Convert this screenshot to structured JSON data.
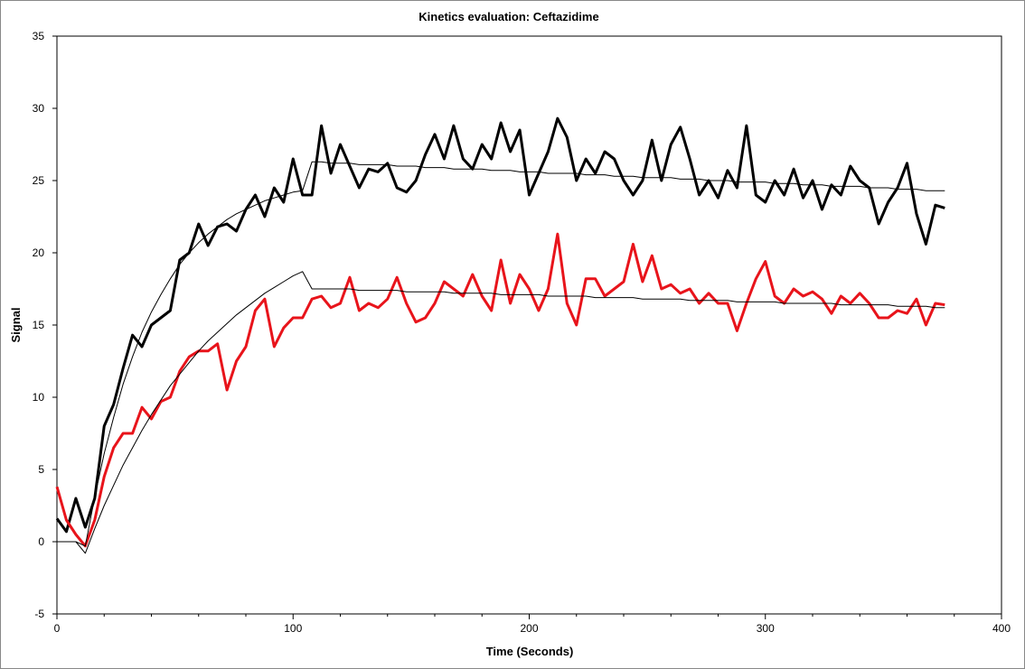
{
  "chart_data": {
    "type": "line",
    "title": "Kinetics evaluation: Ceftazidime",
    "x_label": "Time (Seconds)",
    "y_label": "Signal",
    "xlim": [
      0,
      400
    ],
    "xticks": [
      0,
      100,
      200,
      300,
      400
    ],
    "xminorticks": [
      20,
      40,
      60,
      80,
      120,
      140,
      160,
      180,
      220,
      240,
      260,
      280,
      320,
      340,
      360,
      380
    ],
    "ylim": [
      -5,
      35
    ],
    "yticks": [
      -5,
      0,
      5,
      10,
      15,
      20,
      25,
      30,
      35
    ],
    "grid": false,
    "x": [
      0,
      4,
      8,
      12,
      16,
      20,
      24,
      28,
      32,
      36,
      40,
      44,
      48,
      52,
      56,
      60,
      64,
      68,
      72,
      76,
      80,
      84,
      88,
      92,
      96,
      100,
      104,
      108,
      112,
      116,
      120,
      124,
      128,
      132,
      136,
      140,
      144,
      148,
      152,
      156,
      160,
      164,
      168,
      172,
      176,
      180,
      184,
      188,
      192,
      196,
      200,
      204,
      208,
      212,
      216,
      220,
      224,
      228,
      232,
      236,
      240,
      244,
      248,
      252,
      256,
      260,
      264,
      268,
      272,
      276,
      280,
      284,
      288,
      292,
      296,
      300,
      304,
      308,
      312,
      316,
      320,
      324,
      328,
      332,
      336,
      340,
      344,
      348,
      352,
      356,
      360,
      364,
      368,
      372,
      376
    ],
    "series": [
      {
        "color": "#000000",
        "line_width": 3,
        "values": [
          1.6,
          0.7,
          3.0,
          1.0,
          3.0,
          8.0,
          9.5,
          12.0,
          14.3,
          13.5,
          15,
          15.5,
          16,
          19.5,
          20,
          22,
          20.5,
          21.8,
          22,
          21.5,
          23,
          24,
          22.5,
          24.5,
          23.5,
          26.5,
          24,
          24,
          28.8,
          25.5,
          27.5,
          26,
          24.5,
          25.8,
          25.6,
          26.2,
          24.5,
          24.2,
          25,
          26.8,
          28.2,
          26.5,
          28.8,
          26.5,
          25.8,
          27.5,
          26.5,
          29,
          27,
          28.5,
          24,
          25.5,
          27,
          29.3,
          28,
          25,
          26.5,
          25.5,
          27,
          26.5,
          25,
          24,
          25,
          27.8,
          25,
          27.5,
          28.7,
          26.5,
          24,
          25,
          23.8,
          25.7,
          24.5,
          28.8,
          24,
          23.5,
          25,
          24,
          25.8,
          23.8,
          25,
          23,
          24.7,
          24,
          26,
          25,
          24.5,
          22,
          23.5,
          24.5,
          26.2,
          22.7,
          20.6,
          23.3,
          23.1
        ]
      },
      {
        "color": "#e8141b",
        "line_width": 3,
        "values": [
          3.8,
          1.5,
          0.5,
          -0.3,
          1.5,
          4.5,
          6.5,
          7.5,
          7.5,
          9.3,
          8.5,
          9.7,
          10,
          11.8,
          12.8,
          13.2,
          13.2,
          13.7,
          10.5,
          12.5,
          13.5,
          16,
          16.8,
          13.5,
          14.8,
          15.5,
          15.5,
          16.8,
          17,
          16.2,
          16.5,
          18.3,
          16,
          16.5,
          16.2,
          16.8,
          18.3,
          16.5,
          15.2,
          15.5,
          16.5,
          18,
          17.5,
          17,
          18.5,
          17,
          16,
          19.5,
          16.5,
          18.5,
          17.5,
          16,
          17.5,
          21.3,
          16.5,
          15,
          18.2,
          18.2,
          17,
          17.5,
          18,
          20.6,
          18,
          19.8,
          17.5,
          17.8,
          17.2,
          17.5,
          16.5,
          17.2,
          16.5,
          16.5,
          14.6,
          16.5,
          18.2,
          19.4,
          17,
          16.5,
          17.5,
          17,
          17.3,
          16.8,
          15.8,
          17,
          16.5,
          17.2,
          16.5,
          15.5,
          15.5,
          16,
          15.8,
          16.8,
          15,
          16.5,
          16.4
        ]
      },
      {
        "color": "#000000",
        "line_width": 1,
        "values": [
          0,
          0,
          0,
          -0.3,
          3.1,
          6.1,
          8.6,
          10.9,
          12.8,
          14.5,
          15.9,
          17.1,
          18.2,
          19.2,
          20.0,
          20.7,
          21.3,
          21.8,
          22.3,
          22.7,
          23.0,
          23.3,
          23.6,
          23.8,
          24.0,
          24.2,
          24.3,
          26.3,
          26.3,
          26.2,
          26.2,
          26.2,
          26.1,
          26.1,
          26.1,
          26.1,
          26.0,
          26.0,
          26.0,
          25.9,
          25.9,
          25.9,
          25.8,
          25.8,
          25.8,
          25.8,
          25.7,
          25.7,
          25.7,
          25.6,
          25.6,
          25.6,
          25.5,
          25.5,
          25.5,
          25.5,
          25.4,
          25.4,
          25.4,
          25.3,
          25.3,
          25.3,
          25.2,
          25.2,
          25.2,
          25.2,
          25.1,
          25.1,
          25.1,
          25.0,
          25.0,
          25.0,
          24.9,
          24.9,
          24.9,
          24.9,
          24.8,
          24.8,
          24.8,
          24.7,
          24.7,
          24.7,
          24.6,
          24.6,
          24.6,
          24.6,
          24.5,
          24.5,
          24.5,
          24.4,
          24.4,
          24.4,
          24.3,
          24.3,
          24.3
        ]
      },
      {
        "color": "#000000",
        "line_width": 1,
        "values": [
          0,
          0,
          0,
          -0.8,
          0.9,
          2.5,
          3.9,
          5.3,
          6.5,
          7.7,
          8.8,
          9.8,
          10.8,
          11.6,
          12.4,
          13.2,
          13.9,
          14.5,
          15.1,
          15.7,
          16.2,
          16.7,
          17.2,
          17.6,
          18.0,
          18.4,
          18.7,
          17.5,
          17.5,
          17.5,
          17.5,
          17.5,
          17.4,
          17.4,
          17.4,
          17.4,
          17.4,
          17.3,
          17.3,
          17.3,
          17.3,
          17.3,
          17.2,
          17.2,
          17.2,
          17.2,
          17.2,
          17.1,
          17.1,
          17.1,
          17.1,
          17.1,
          17.0,
          17.0,
          17.0,
          17.0,
          17.0,
          16.9,
          16.9,
          16.9,
          16.9,
          16.9,
          16.8,
          16.8,
          16.8,
          16.8,
          16.8,
          16.7,
          16.7,
          16.7,
          16.7,
          16.7,
          16.6,
          16.6,
          16.6,
          16.6,
          16.6,
          16.5,
          16.5,
          16.5,
          16.5,
          16.5,
          16.5,
          16.4,
          16.4,
          16.4,
          16.4,
          16.4,
          16.4,
          16.3,
          16.3,
          16.3,
          16.3,
          16.2,
          16.2
        ]
      }
    ]
  }
}
